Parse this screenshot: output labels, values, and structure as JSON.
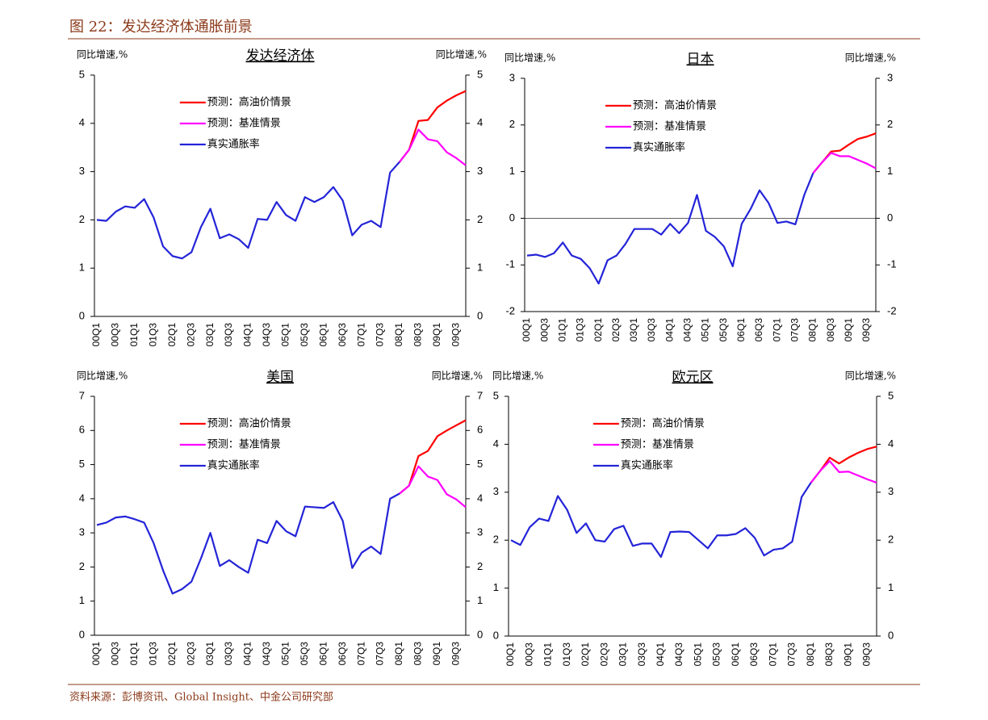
{
  "header": {
    "title": "图 22：发达经济体通胀前景"
  },
  "footer": {
    "source": "资料来源：彭博资讯、Global Insight、中金公司研究部"
  },
  "chart_data": [
    {
      "type": "line",
      "title": "发达经济体",
      "ylabel": "同比增速,%",
      "y2label": "同比增速,%",
      "categories": [
        "00Q1",
        null,
        "00Q3",
        null,
        "01Q1",
        null,
        "01Q3",
        null,
        "02Q1",
        null,
        "02Q3",
        null,
        "03Q1",
        null,
        "03Q3",
        null,
        "04Q1",
        null,
        "04Q3",
        null,
        "05Q1",
        null,
        "05Q3",
        null,
        "06Q1",
        null,
        "06Q3",
        null,
        "07Q1",
        null,
        "07Q3",
        null,
        "08Q1",
        null,
        "08Q3",
        null,
        "09Q1",
        null,
        "09Q3",
        null
      ],
      "ylim": [
        0,
        5
      ],
      "yticks": [
        0,
        1,
        2,
        3,
        4,
        5
      ],
      "y2lim": [
        0,
        5
      ],
      "y2ticks": [
        0,
        1,
        2,
        3,
        4,
        5
      ],
      "legend": "upper left",
      "series": [
        {
          "name": "预测：高油价情景",
          "color": "#ff0000",
          "values": [
            null,
            null,
            null,
            null,
            null,
            null,
            null,
            null,
            null,
            null,
            null,
            null,
            null,
            null,
            null,
            null,
            null,
            null,
            null,
            null,
            null,
            null,
            null,
            null,
            null,
            null,
            null,
            null,
            null,
            null,
            null,
            null,
            3.2,
            3.45,
            4.05,
            4.07,
            4.33,
            4.47,
            4.58,
            4.67
          ]
        },
        {
          "name": "预测：基准情景",
          "color": "#ff00ff",
          "values": [
            null,
            null,
            null,
            null,
            null,
            null,
            null,
            null,
            null,
            null,
            null,
            null,
            null,
            null,
            null,
            null,
            null,
            null,
            null,
            null,
            null,
            null,
            null,
            null,
            null,
            null,
            null,
            null,
            null,
            null,
            null,
            null,
            3.2,
            3.45,
            3.87,
            3.67,
            3.63,
            3.4,
            3.28,
            3.13
          ]
        },
        {
          "name": "真实通胀率",
          "color": "#2424d8",
          "values": [
            2.0,
            1.98,
            2.17,
            2.28,
            2.25,
            2.43,
            2.05,
            1.45,
            1.25,
            1.2,
            1.33,
            1.85,
            2.23,
            1.62,
            1.7,
            1.6,
            1.42,
            2.02,
            2.0,
            2.37,
            2.1,
            1.98,
            2.47,
            2.37,
            2.47,
            2.68,
            2.4,
            1.68,
            1.9,
            1.98,
            1.85,
            2.98,
            3.2,
            null,
            null,
            null,
            null,
            null,
            null,
            null
          ]
        }
      ]
    },
    {
      "type": "line",
      "title": "日本",
      "ylabel": "同比增速,%",
      "y2label": "同比增速,%",
      "categories": [
        "00Q1",
        null,
        "00Q3",
        null,
        "01Q1",
        null,
        "01Q3",
        null,
        "02Q1",
        null,
        "02Q3",
        null,
        "03Q1",
        null,
        "03Q3",
        null,
        "04Q1",
        null,
        "04Q3",
        null,
        "05Q1",
        null,
        "05Q3",
        null,
        "06Q1",
        null,
        "06Q3",
        null,
        "07Q1",
        null,
        "07Q3",
        null,
        "08Q1",
        null,
        "08Q3",
        null,
        "09Q1",
        null,
        "09Q3",
        null
      ],
      "ylim": [
        -2,
        3
      ],
      "yticks": [
        -2,
        -1,
        0,
        1,
        2,
        3
      ],
      "y2lim": [
        -2,
        3
      ],
      "y2ticks": [
        -2,
        -1,
        0,
        1,
        2,
        3
      ],
      "legend": "upper left",
      "series": [
        {
          "name": "预测：高油价情景",
          "color": "#ff0000",
          "values": [
            null,
            null,
            null,
            null,
            null,
            null,
            null,
            null,
            null,
            null,
            null,
            null,
            null,
            null,
            null,
            null,
            null,
            null,
            null,
            null,
            null,
            null,
            null,
            null,
            null,
            null,
            null,
            null,
            null,
            null,
            null,
            null,
            0.97,
            1.2,
            1.43,
            1.45,
            1.58,
            1.7,
            1.75,
            1.82
          ]
        },
        {
          "name": "预测：基准情景",
          "color": "#ff00ff",
          "values": [
            null,
            null,
            null,
            null,
            null,
            null,
            null,
            null,
            null,
            null,
            null,
            null,
            null,
            null,
            null,
            null,
            null,
            null,
            null,
            null,
            null,
            null,
            null,
            null,
            null,
            null,
            null,
            null,
            null,
            null,
            null,
            null,
            0.97,
            1.2,
            1.4,
            1.33,
            1.33,
            1.25,
            1.17,
            1.07
          ]
        },
        {
          "name": "真实通胀率",
          "color": "#2424d8",
          "values": [
            -0.8,
            -0.78,
            -0.83,
            -0.75,
            -0.52,
            -0.8,
            -0.87,
            -1.07,
            -1.4,
            -0.9,
            -0.8,
            -0.55,
            -0.23,
            -0.23,
            -0.23,
            -0.35,
            -0.12,
            -0.32,
            -0.1,
            0.5,
            -0.27,
            -0.4,
            -0.6,
            -1.03,
            -0.12,
            0.2,
            0.6,
            0.33,
            -0.1,
            -0.07,
            -0.13,
            0.5,
            0.97,
            null,
            null,
            null,
            null,
            null,
            null,
            null
          ]
        }
      ]
    },
    {
      "type": "line",
      "title": "美国",
      "ylabel": "同比增速,%",
      "y2label": "同比增速,%",
      "categories": [
        "00Q1",
        null,
        "00Q3",
        null,
        "01Q1",
        null,
        "01Q3",
        null,
        "02Q1",
        null,
        "02Q3",
        null,
        "03Q1",
        null,
        "03Q3",
        null,
        "04Q1",
        null,
        "04Q3",
        null,
        "05Q1",
        null,
        "05Q3",
        null,
        "06Q1",
        null,
        "06Q3",
        null,
        "07Q1",
        null,
        "07Q3",
        null,
        "08Q1",
        null,
        "08Q3",
        null,
        "09Q1",
        null,
        "09Q3",
        null
      ],
      "ylim": [
        0,
        7
      ],
      "yticks": [
        0,
        1,
        2,
        3,
        4,
        5,
        6,
        7
      ],
      "y2lim": [
        0,
        7
      ],
      "y2ticks": [
        0,
        1,
        2,
        3,
        4,
        5,
        6,
        7
      ],
      "legend": "upper left",
      "series": [
        {
          "name": "预测：高油价情景",
          "color": "#ff0000",
          "values": [
            null,
            null,
            null,
            null,
            null,
            null,
            null,
            null,
            null,
            null,
            null,
            null,
            null,
            null,
            null,
            null,
            null,
            null,
            null,
            null,
            null,
            null,
            null,
            null,
            null,
            null,
            null,
            null,
            null,
            null,
            null,
            null,
            4.15,
            4.38,
            5.25,
            5.4,
            5.83,
            6.0,
            6.15,
            6.3
          ]
        },
        {
          "name": "预测：基准情景",
          "color": "#ff00ff",
          "values": [
            null,
            null,
            null,
            null,
            null,
            null,
            null,
            null,
            null,
            null,
            null,
            null,
            null,
            null,
            null,
            null,
            null,
            null,
            null,
            null,
            null,
            null,
            null,
            null,
            null,
            null,
            null,
            null,
            null,
            null,
            null,
            null,
            4.15,
            4.38,
            4.95,
            4.65,
            4.55,
            4.13,
            3.98,
            3.75
          ]
        },
        {
          "name": "真实通胀率",
          "color": "#2424d8",
          "values": [
            3.23,
            3.3,
            3.45,
            3.48,
            3.4,
            3.3,
            2.7,
            1.9,
            1.22,
            1.35,
            1.57,
            2.25,
            3.0,
            2.03,
            2.2,
            2.0,
            1.83,
            2.8,
            2.7,
            3.35,
            3.05,
            2.9,
            3.77,
            3.75,
            3.73,
            3.9,
            3.35,
            1.97,
            2.42,
            2.6,
            2.38,
            4.0,
            4.15,
            null,
            null,
            null,
            null,
            null,
            null,
            null
          ]
        }
      ]
    },
    {
      "type": "line",
      "title": "欧元区",
      "ylabel": "同比增速,%",
      "y2label": "同比增速,%",
      "categories": [
        "00Q1",
        null,
        "00Q3",
        null,
        "01Q1",
        null,
        "01Q3",
        null,
        "02Q1",
        null,
        "02Q3",
        null,
        "03Q1",
        null,
        "03Q3",
        null,
        "04Q1",
        null,
        "04Q3",
        null,
        "05Q1",
        null,
        "05Q3",
        null,
        "06Q1",
        null,
        "06Q3",
        null,
        "07Q1",
        null,
        "07Q3",
        null,
        "08Q1",
        null,
        "08Q3",
        null,
        "09Q1",
        null,
        "09Q3",
        null
      ],
      "ylim": [
        0,
        5
      ],
      "yticks": [
        0,
        1,
        2,
        3,
        4,
        5
      ],
      "y2lim": [
        0,
        5
      ],
      "y2ticks": [
        0,
        1,
        2,
        3,
        4,
        5
      ],
      "legend": "upper left",
      "series": [
        {
          "name": "预测：高油价情景",
          "color": "#ff0000",
          "values": [
            null,
            null,
            null,
            null,
            null,
            null,
            null,
            null,
            null,
            null,
            null,
            null,
            null,
            null,
            null,
            null,
            null,
            null,
            null,
            null,
            null,
            null,
            null,
            null,
            null,
            null,
            null,
            null,
            null,
            null,
            null,
            null,
            3.2,
            3.45,
            3.72,
            3.6,
            3.72,
            3.82,
            3.9,
            3.95
          ]
        },
        {
          "name": "预测：基准情景",
          "color": "#ff00ff",
          "values": [
            null,
            null,
            null,
            null,
            null,
            null,
            null,
            null,
            null,
            null,
            null,
            null,
            null,
            null,
            null,
            null,
            null,
            null,
            null,
            null,
            null,
            null,
            null,
            null,
            null,
            null,
            null,
            null,
            null,
            null,
            null,
            null,
            3.2,
            3.45,
            3.65,
            3.42,
            3.43,
            3.35,
            3.27,
            3.2
          ]
        },
        {
          "name": "真实通胀率",
          "color": "#2424d8",
          "values": [
            2.0,
            1.9,
            2.27,
            2.45,
            2.4,
            2.92,
            2.63,
            2.15,
            2.35,
            2.0,
            1.97,
            2.23,
            2.3,
            1.88,
            1.93,
            1.93,
            1.65,
            2.17,
            2.18,
            2.17,
            2.0,
            1.83,
            2.1,
            2.1,
            2.13,
            2.25,
            2.05,
            1.68,
            1.8,
            1.83,
            1.97,
            2.9,
            3.2,
            null,
            null,
            null,
            null,
            null,
            null,
            null
          ]
        }
      ]
    }
  ]
}
